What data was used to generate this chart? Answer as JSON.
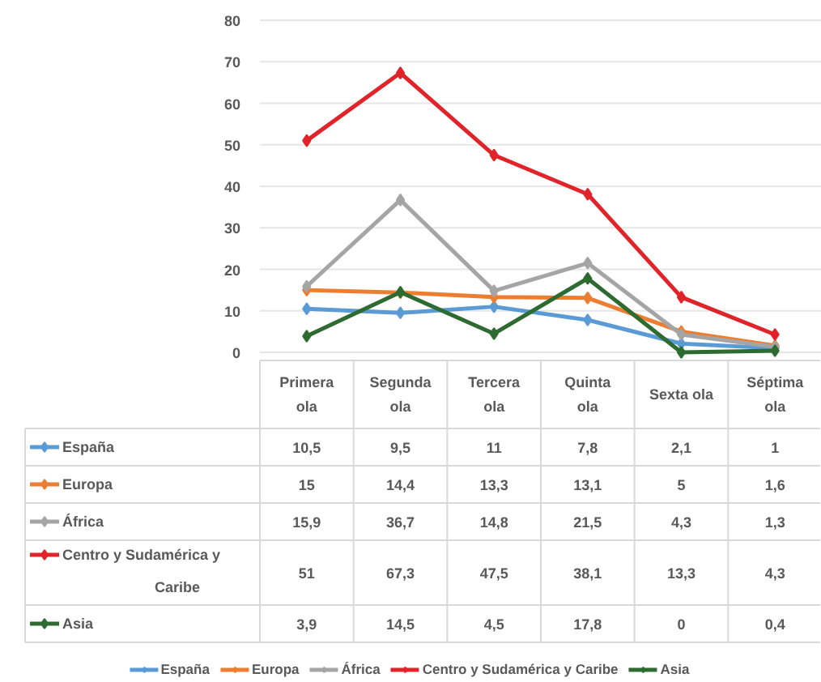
{
  "chart_data": {
    "type": "line",
    "categories": [
      "Primera ola",
      "Segunda ola",
      "Tercera ola",
      "Quinta ola",
      "Sexta ola",
      "Séptima ola"
    ],
    "ylim": [
      0,
      80
    ],
    "yticks": [
      0,
      10,
      20,
      30,
      40,
      50,
      60,
      70,
      80
    ],
    "grid": "y",
    "legend": "bottom",
    "marker": "diamond",
    "line_style": "solid",
    "series": [
      {
        "name": "España",
        "color": "#5b9bd5",
        "values": [
          10.5,
          9.5,
          11,
          7.8,
          2.1,
          1
        ],
        "value_labels": [
          "10,5",
          "9,5",
          "11",
          "7,8",
          "2,1",
          "1"
        ]
      },
      {
        "name": "Europa",
        "color": "#ed7d31",
        "values": [
          15,
          14.4,
          13.3,
          13.1,
          5,
          1.6
        ],
        "value_labels": [
          "15",
          "14,4",
          "13,3",
          "13,1",
          "5",
          "1,6"
        ]
      },
      {
        "name": "África",
        "color": "#a5a5a5",
        "values": [
          15.9,
          36.7,
          14.8,
          21.5,
          4.3,
          1.3
        ],
        "value_labels": [
          "15,9",
          "36,7",
          "14,8",
          "21,5",
          "4,3",
          "1,3"
        ]
      },
      {
        "name": "Centro y Sudamérica y Caribe",
        "color": "#e0242a",
        "values": [
          51,
          67.3,
          47.5,
          38.1,
          13.3,
          4.3
        ],
        "value_labels": [
          "51",
          "67,3",
          "47,5",
          "38,1",
          "13,3",
          "4,3"
        ]
      },
      {
        "name": "Asia",
        "color": "#2e6b30",
        "values": [
          3.9,
          14.5,
          4.5,
          17.8,
          0,
          0.4
        ],
        "value_labels": [
          "3,9",
          "14,5",
          "4,5",
          "17,8",
          "0",
          "0,4"
        ]
      }
    ]
  }
}
